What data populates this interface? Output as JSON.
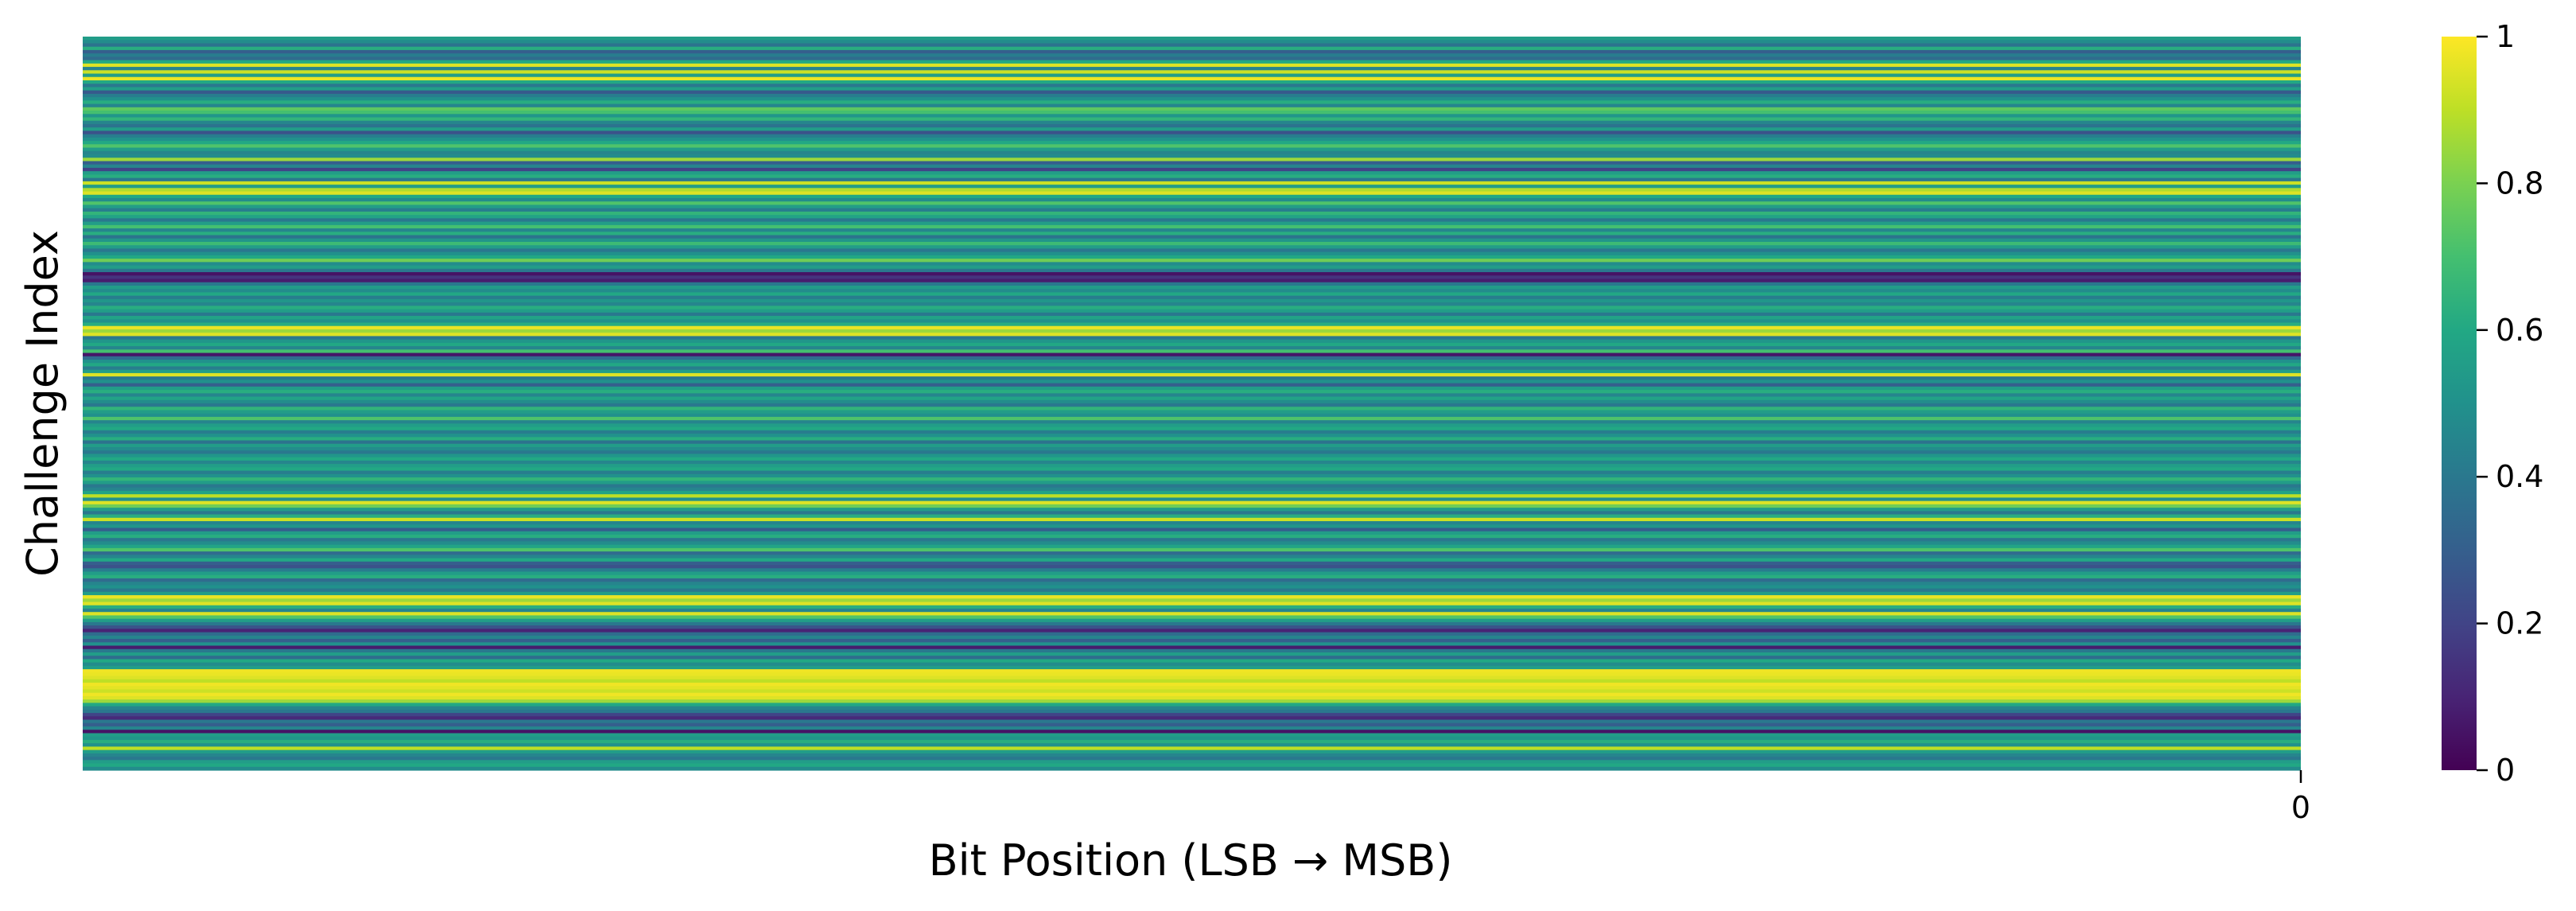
{
  "chart_data": {
    "type": "heatmap",
    "title": "",
    "xlabel": "Bit Position (LSB → MSB)",
    "ylabel": "Challenge Index",
    "x_ticks": [
      "0"
    ],
    "colormap": "viridis",
    "colorbar": {
      "range": [
        0,
        1
      ],
      "ticks": [
        "0",
        "0.2",
        "0.4",
        "0.6",
        "0.8",
        "1"
      ]
    },
    "row_values": [
      0.55,
      0.48,
      0.38,
      0.62,
      0.3,
      0.42,
      0.35,
      0.6,
      0.95,
      0.45,
      0.92,
      0.55,
      0.97,
      0.6,
      0.4,
      0.55,
      0.28,
      0.42,
      0.5,
      0.62,
      0.45,
      0.75,
      0.7,
      0.52,
      0.65,
      0.45,
      0.38,
      0.55,
      0.25,
      0.42,
      0.5,
      0.6,
      0.72,
      0.55,
      0.45,
      0.48,
      0.85,
      0.3,
      0.45,
      0.2,
      0.55,
      0.62,
      0.4,
      0.92,
      0.55,
      0.88,
      0.95,
      0.6,
      0.48,
      0.72,
      0.55,
      0.42,
      0.65,
      0.58,
      0.4,
      0.55,
      0.7,
      0.45,
      0.62,
      0.38,
      0.52,
      0.68,
      0.55,
      0.4,
      0.5,
      0.6,
      0.78,
      0.48,
      0.55,
      0.4,
      0.05,
      0.15,
      0.08,
      0.4,
      0.55,
      0.48,
      0.6,
      0.42,
      0.52,
      0.45,
      0.62,
      0.55,
      0.4,
      0.58,
      0.5,
      0.62,
      0.97,
      0.85,
      0.95,
      0.4,
      0.52,
      0.6,
      0.45,
      0.7,
      0.06,
      0.35,
      0.5,
      0.6,
      0.42,
      0.55,
      0.95,
      0.4,
      0.5,
      0.3,
      0.55,
      0.62,
      0.45,
      0.58,
      0.48,
      0.4,
      0.65,
      0.55,
      0.5,
      0.72,
      0.45,
      0.55,
      0.6,
      0.42,
      0.5,
      0.62,
      0.38,
      0.55,
      0.48,
      0.4,
      0.52,
      0.6,
      0.45,
      0.55,
      0.6,
      0.42,
      0.5,
      0.65,
      0.55,
      0.4,
      0.45,
      0.58,
      0.9,
      0.5,
      0.95,
      0.78,
      0.55,
      0.4,
      0.62,
      0.92,
      0.45,
      0.52,
      0.3,
      0.55,
      0.62,
      0.4,
      0.48,
      0.58,
      0.72,
      0.35,
      0.45,
      0.6,
      0.3,
      0.25,
      0.42,
      0.55,
      0.62,
      0.35,
      0.45,
      0.5,
      0.4,
      0.55,
      0.97,
      0.85,
      0.95,
      0.62,
      0.45,
      0.95,
      0.72,
      0.55,
      0.4,
      0.25,
      0.1,
      0.35,
      0.45,
      0.3,
      0.5,
      0.08,
      0.4,
      0.55,
      0.35,
      0.6,
      0.48,
      0.55,
      0.98,
      0.97,
      0.95,
      0.9,
      0.98,
      0.96,
      0.92,
      0.98,
      0.95,
      0.85,
      0.6,
      0.45,
      0.4,
      0.2,
      0.12,
      0.4,
      0.3,
      0.45,
      0.05,
      0.55,
      0.52,
      0.62,
      0.5,
      0.9,
      0.55,
      0.45,
      0.4,
      0.55,
      0.6,
      0.48
    ]
  }
}
